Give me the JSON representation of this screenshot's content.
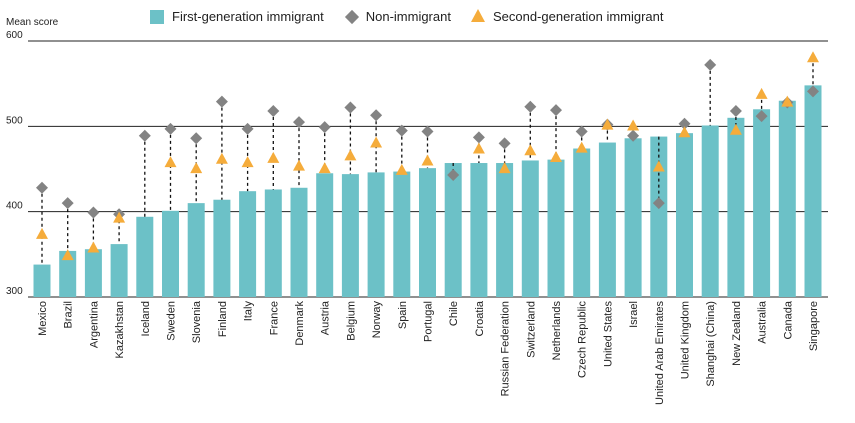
{
  "legend": {
    "first": "First-generation immigrant",
    "non": "Non-immigrant",
    "second": "Second-generation immigrant"
  },
  "colors": {
    "bar": "#6cc1c7",
    "diamond": "#838383",
    "triangle": "#f5ac3b",
    "grid": "#222222"
  },
  "chart_data": {
    "type": "bar",
    "ylabel": "Mean score",
    "ylim": [
      300,
      600
    ],
    "yticks": [
      300,
      400,
      500,
      600
    ],
    "categories": [
      "Mexico",
      "Brazil",
      "Argentina",
      "Kazakhstan",
      "Iceland",
      "Sweden",
      "Slovenia",
      "Finland",
      "Italy",
      "France",
      "Denmark",
      "Austria",
      "Belgium",
      "Norway",
      "Spain",
      "Portugal",
      "Chile",
      "Croatia",
      "Russian Federation",
      "Switzerland",
      "Netherlands",
      "Czech Republic",
      "United States",
      "Israel",
      "United Arab Emirates",
      "United Kingdom",
      "Shanghai (China)",
      "New Zealand",
      "Australia",
      "Canada",
      "Singapore"
    ],
    "series": [
      {
        "name": "First-generation immigrant",
        "marker": "bar",
        "values": [
          338,
          354,
          356,
          362,
          394,
          401,
          410,
          414,
          424,
          426,
          428,
          445,
          444,
          446,
          447,
          451,
          457,
          457,
          457,
          460,
          461,
          474,
          481,
          486,
          488,
          492,
          501,
          510,
          520,
          530,
          548
        ]
      },
      {
        "name": "Non-immigrant",
        "marker": "diamond",
        "values": [
          428,
          410,
          399,
          397,
          489,
          497,
          486,
          529,
          497,
          518,
          505,
          499,
          522,
          513,
          495,
          494,
          443,
          487,
          480,
          523,
          519,
          494,
          502,
          489,
          410,
          503,
          572,
          518,
          512,
          528,
          541
        ]
      },
      {
        "name": "Second-generation immigrant",
        "marker": "triangle",
        "values": [
          374,
          349,
          358,
          393,
          null,
          458,
          451,
          462,
          458,
          463,
          454,
          451,
          466,
          481,
          449,
          460,
          null,
          474,
          451,
          472,
          464,
          475,
          502,
          501,
          453,
          493,
          null,
          496,
          538,
          529,
          581
        ]
      }
    ]
  }
}
